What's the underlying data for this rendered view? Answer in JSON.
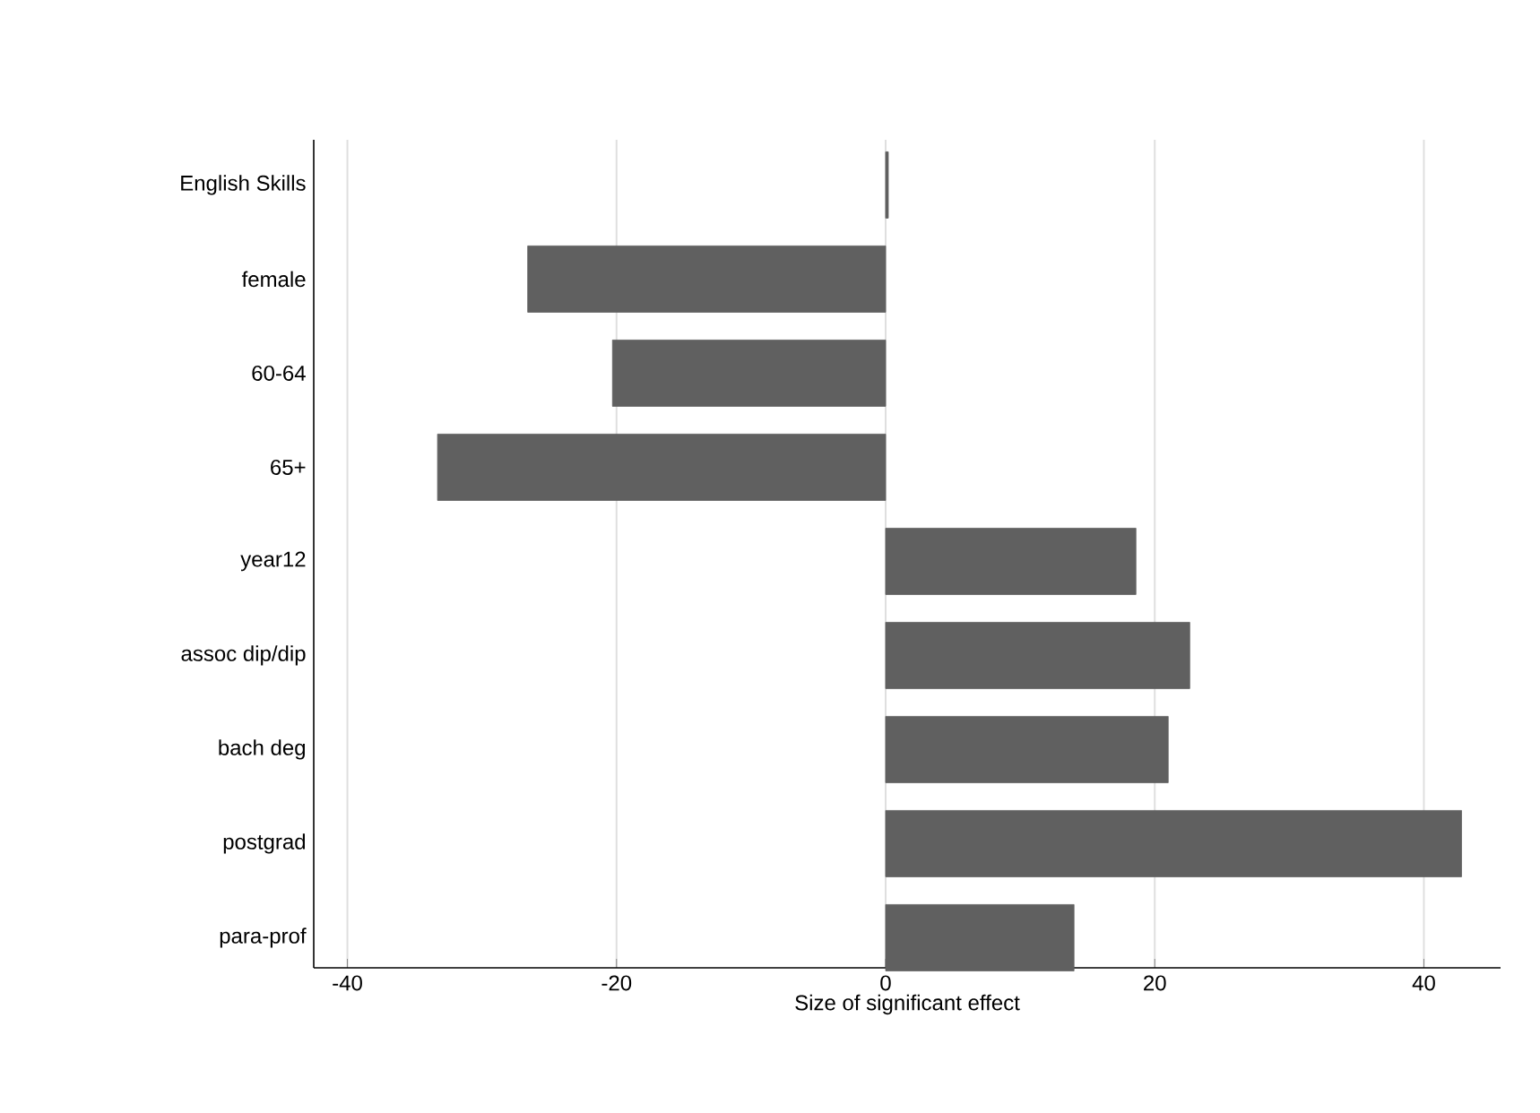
{
  "chart_data": {
    "type": "bar",
    "orientation": "horizontal",
    "xlabel": "Size of significant effect",
    "categories": [
      "English Skills",
      "female",
      "60-64",
      "65+",
      "year12",
      "assoc dip/dip",
      "bach deg",
      "postgrad",
      "para-prof"
    ],
    "values": [
      0.2,
      -26.6,
      -20.3,
      -33.3,
      18.6,
      22.6,
      21.0,
      42.8,
      14.0
    ],
    "color": "#606060",
    "xlim": [
      -42.5,
      45.7
    ],
    "xticks": [
      -40,
      -20,
      0,
      20,
      40
    ],
    "grid": "x"
  }
}
